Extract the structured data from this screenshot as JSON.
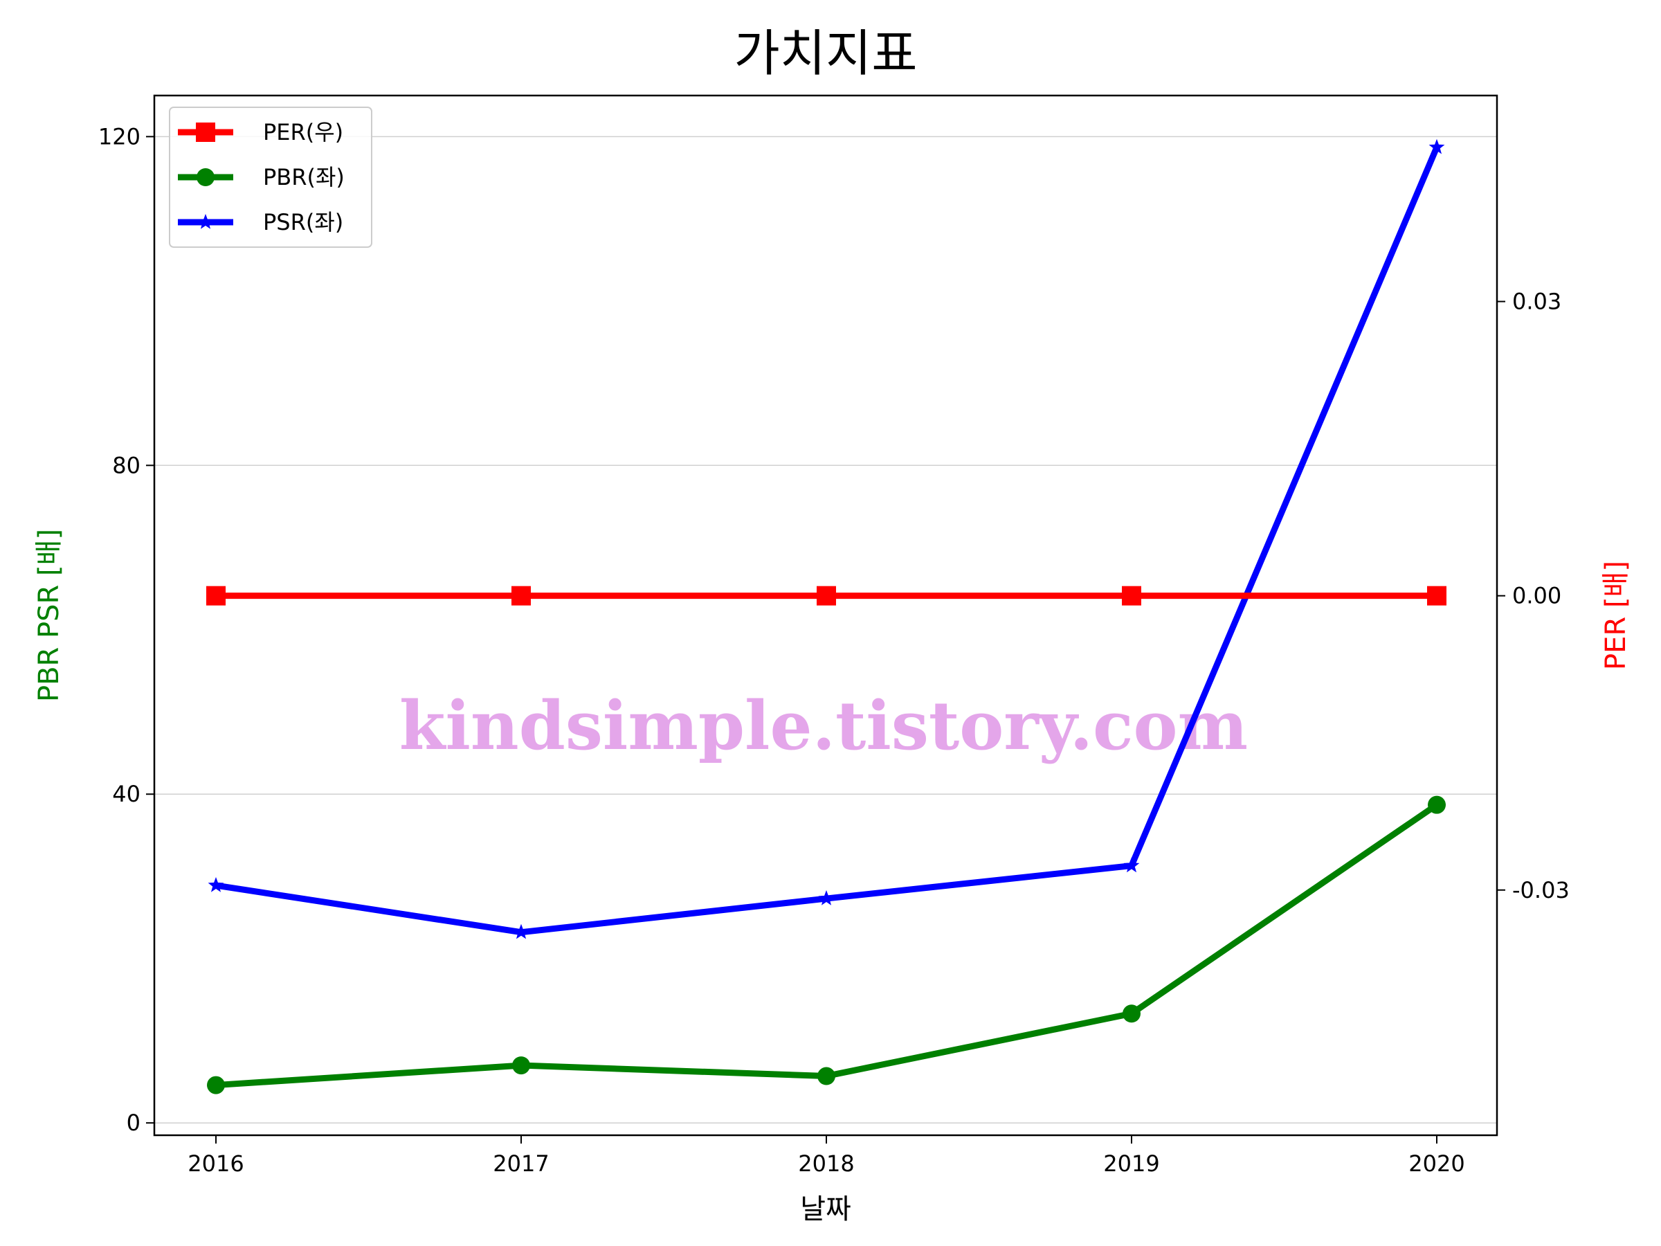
{
  "chart_data": {
    "type": "line",
    "title": "가치지표",
    "xlabel": "날짜",
    "ylabel_left": "PBR PSR [배]",
    "ylabel_right": "PER [배]",
    "categories": [
      "2016",
      "2017",
      "2018",
      "2019",
      "2020"
    ],
    "left_axis": {
      "ylim": [
        -1.5,
        125
      ],
      "ticks": [
        0,
        40,
        80,
        120
      ],
      "tick_labels": [
        "0",
        "40",
        "80",
        "120"
      ]
    },
    "right_axis": {
      "ylim": [
        -0.055,
        0.051
      ],
      "ticks": [
        -0.03,
        0.0,
        0.03
      ],
      "tick_labels": [
        "-0.03",
        "0.00",
        "0.03"
      ]
    },
    "grid": true,
    "legend_position": "upper-left",
    "series": [
      {
        "name": "PER(우)",
        "axis": "right",
        "color": "#ff0000",
        "marker": "square",
        "values": [
          0,
          0,
          0,
          0,
          0
        ]
      },
      {
        "name": "PBR(좌)",
        "axis": "left",
        "color": "#008000",
        "marker": "circle",
        "values": [
          4.6,
          7.0,
          5.7,
          13.3,
          38.7
        ]
      },
      {
        "name": "PSR(좌)",
        "axis": "left",
        "color": "#0000ff",
        "marker": "star",
        "values": [
          28.9,
          23.2,
          27.3,
          31.3,
          118.7
        ]
      }
    ],
    "watermark": "kindsimple.tistory.com"
  }
}
